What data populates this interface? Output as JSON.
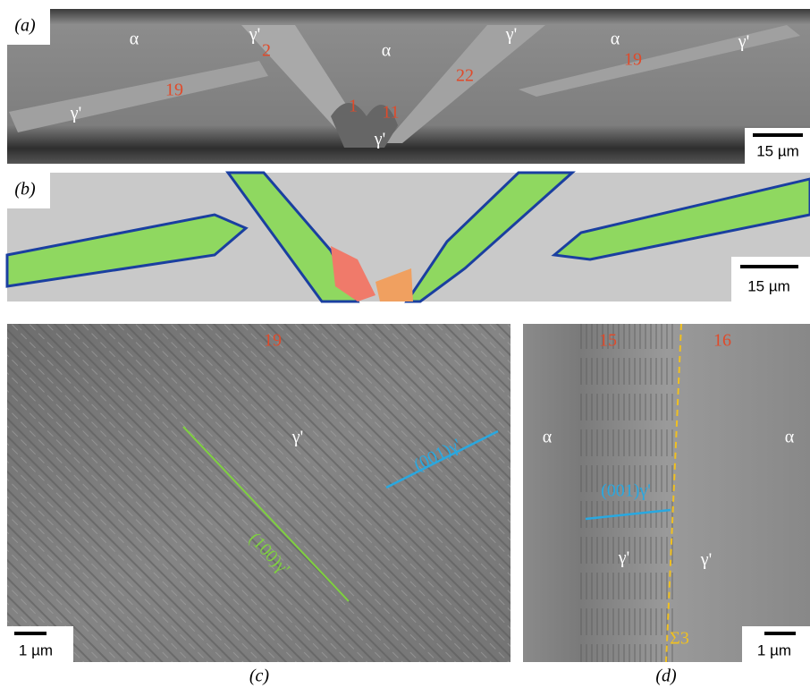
{
  "panels": [
    {
      "label": "(a)",
      "scale_bar": "15 µm",
      "annotations": [
        "α",
        "γ'",
        "2",
        "α",
        "γ'",
        "α",
        "γ'",
        "22",
        "19",
        "19",
        "γ'",
        "1",
        "11",
        "γ'"
      ]
    },
    {
      "label": "(b)",
      "scale_bar": "15 µm",
      "annotations": []
    },
    {
      "caption": "(c)",
      "scale_bar": "1 µm",
      "annotations": [
        "19",
        "γ'",
        "(001)γ'",
        "(100)γ'"
      ]
    },
    {
      "caption": "(d)",
      "scale_bar": "1 µm",
      "annotations": [
        "15",
        "16",
        "α",
        "α",
        "(001)γ'",
        "γ'",
        "γ'",
        "Σ3"
      ]
    }
  ]
}
